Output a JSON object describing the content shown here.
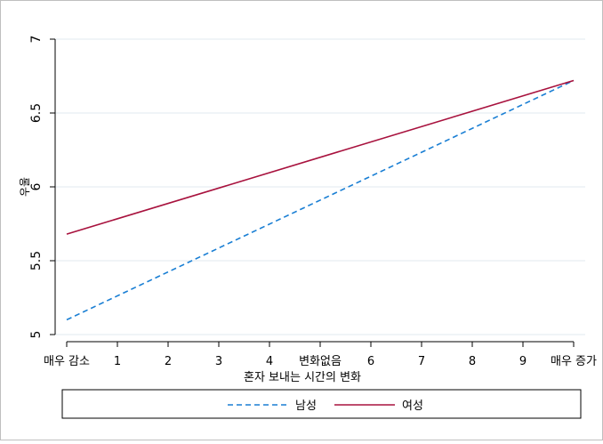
{
  "chart_data": {
    "type": "line",
    "title": "",
    "xlabel": "혼자 보내는 시간의 변화",
    "ylabel": "우울",
    "x": [
      0,
      10
    ],
    "xticks": [
      {
        "value": 0,
        "label": "매우 감소"
      },
      {
        "value": 1,
        "label": "1"
      },
      {
        "value": 2,
        "label": "2"
      },
      {
        "value": 3,
        "label": "3"
      },
      {
        "value": 4,
        "label": "4"
      },
      {
        "value": 5,
        "label": "변화없음"
      },
      {
        "value": 6,
        "label": "6"
      },
      {
        "value": 7,
        "label": "7"
      },
      {
        "value": 8,
        "label": "8"
      },
      {
        "value": 9,
        "label": "9"
      },
      {
        "value": 10,
        "label": "매우 증가"
      }
    ],
    "yticks": [
      {
        "value": 5,
        "label": "5"
      },
      {
        "value": 5.5,
        "label": "5.5"
      },
      {
        "value": 6,
        "label": "6"
      },
      {
        "value": 6.5,
        "label": "6.5"
      },
      {
        "value": 7,
        "label": "7"
      }
    ],
    "xlim": [
      0,
      10
    ],
    "ylim": [
      5,
      7
    ],
    "grid": "horizontal",
    "legend_position": "bottom",
    "series": [
      {
        "name": "남성",
        "values": [
          5.1,
          6.72
        ],
        "color": "#1a7fd4",
        "style": "dashed"
      },
      {
        "name": "여성",
        "values": [
          5.68,
          6.72
        ],
        "color": "#a8123e",
        "style": "solid"
      }
    ]
  }
}
